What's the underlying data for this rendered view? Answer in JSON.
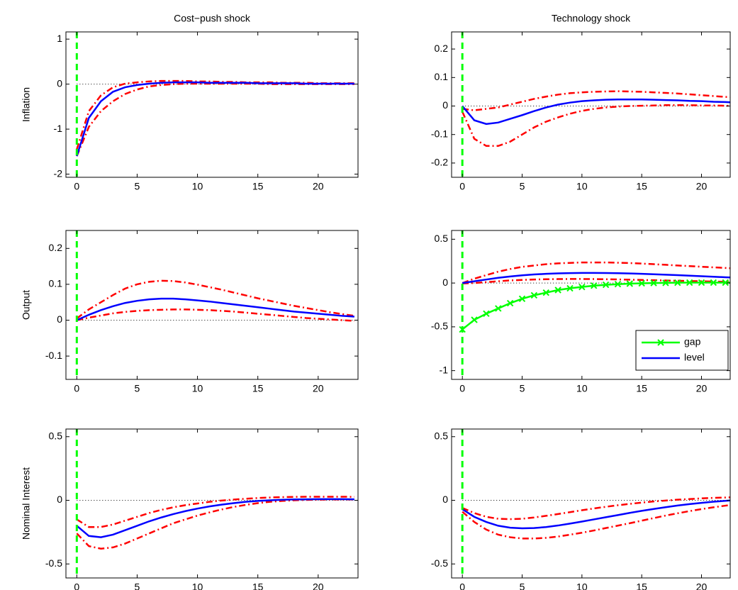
{
  "chart_data": [
    {
      "type": "line",
      "title": "Cost−push shock",
      "ylabel": "Inflation",
      "x": [
        0,
        1,
        2,
        3,
        4,
        5,
        6,
        7,
        8,
        9,
        10,
        11,
        12,
        13,
        14,
        15,
        16,
        17,
        18,
        19,
        20,
        21,
        22,
        23
      ],
      "xlim": [
        -0.9,
        23.3
      ],
      "xticks": [
        0,
        5,
        10,
        15,
        20
      ],
      "ylim": [
        -2.07,
        1.16
      ],
      "yticks": [
        -2,
        -1,
        0,
        1
      ],
      "series": [
        {
          "color": "#ff0000",
          "style": "dashdot",
          "values": [
            -1.45,
            -0.6,
            -0.25,
            -0.07,
            0.01,
            0.04,
            0.06,
            0.07,
            0.07,
            0.07,
            0.06,
            0.06,
            0.05,
            0.05,
            0.04,
            0.04,
            0.04,
            0.03,
            0.03,
            0.03,
            0.02,
            0.02,
            0.02,
            0.02
          ]
        },
        {
          "color": "#ff0000",
          "style": "dashdot",
          "values": [
            -1.6,
            -0.95,
            -0.6,
            -0.38,
            -0.22,
            -0.12,
            -0.05,
            -0.02,
            0,
            0.01,
            0.01,
            0.01,
            0.01,
            0.01,
            0.01,
            0.01,
            0,
            0,
            0,
            0,
            0,
            0,
            0,
            0
          ]
        },
        {
          "color": "#0000ff",
          "style": "solid",
          "values": [
            -1.6,
            -0.75,
            -0.38,
            -0.17,
            -0.07,
            -0.02,
            0.01,
            0.03,
            0.04,
            0.04,
            0.04,
            0.03,
            0.03,
            0.03,
            0.03,
            0.02,
            0.02,
            0.02,
            0.02,
            0.01,
            0.01,
            0.01,
            0.01,
            0.01
          ]
        }
      ]
    },
    {
      "type": "line",
      "title": "Technology shock",
      "x": [
        0,
        1,
        2,
        3,
        4,
        5,
        6,
        7,
        8,
        9,
        10,
        11,
        12,
        13,
        14,
        15,
        16,
        17,
        18,
        19,
        20,
        21,
        22,
        23
      ],
      "xlim": [
        -0.9,
        22.4
      ],
      "xticks": [
        0,
        5,
        10,
        15,
        20
      ],
      "ylim": [
        -0.25,
        0.26
      ],
      "yticks": [
        -0.2,
        -0.1,
        0,
        0.1,
        0.2
      ],
      "series": [
        {
          "color": "#ff0000",
          "style": "dashdot",
          "values": [
            -0.01,
            -0.015,
            -0.01,
            -0.005,
            0.005,
            0.015,
            0.025,
            0.033,
            0.04,
            0.045,
            0.048,
            0.05,
            0.051,
            0.052,
            0.051,
            0.05,
            0.048,
            0.046,
            0.044,
            0.041,
            0.038,
            0.035,
            0.032,
            0.03
          ]
        },
        {
          "color": "#ff0000",
          "style": "dashdot",
          "values": [
            -0.02,
            -0.115,
            -0.14,
            -0.14,
            -0.125,
            -0.1,
            -0.075,
            -0.055,
            -0.04,
            -0.027,
            -0.017,
            -0.01,
            -0.005,
            -0.002,
            0,
            0.001,
            0.002,
            0.003,
            0.003,
            0.003,
            0.002,
            0.002,
            0.001,
            0
          ]
        },
        {
          "color": "#0000ff",
          "style": "solid",
          "values": [
            0,
            -0.05,
            -0.063,
            -0.058,
            -0.045,
            -0.032,
            -0.018,
            -0.005,
            0.005,
            0.012,
            0.017,
            0.02,
            0.022,
            0.023,
            0.023,
            0.023,
            0.022,
            0.021,
            0.02,
            0.018,
            0.017,
            0.015,
            0.014,
            0.012
          ]
        }
      ]
    },
    {
      "type": "line",
      "ylabel": "Output",
      "x": [
        0,
        1,
        2,
        3,
        4,
        5,
        6,
        7,
        8,
        9,
        10,
        11,
        12,
        13,
        14,
        15,
        16,
        17,
        18,
        19,
        20,
        21,
        22,
        23
      ],
      "xlim": [
        -0.9,
        23.3
      ],
      "xticks": [
        0,
        5,
        10,
        15,
        20
      ],
      "ylim": [
        -0.165,
        0.25
      ],
      "yticks": [
        -0.1,
        0,
        0.1,
        0.2
      ],
      "series": [
        {
          "color": "#ff0000",
          "style": "dashdot",
          "values": [
            0.005,
            0.03,
            0.05,
            0.07,
            0.088,
            0.1,
            0.107,
            0.11,
            0.109,
            0.105,
            0.099,
            0.092,
            0.085,
            0.077,
            0.069,
            0.061,
            0.054,
            0.047,
            0.04,
            0.034,
            0.028,
            0.022,
            0.017,
            0.012
          ]
        },
        {
          "color": "#ff0000",
          "style": "dashdot",
          "values": [
            0,
            0.007,
            0.013,
            0.019,
            0.023,
            0.026,
            0.028,
            0.029,
            0.03,
            0.03,
            0.029,
            0.028,
            0.026,
            0.024,
            0.021,
            0.018,
            0.015,
            0.012,
            0.009,
            0.006,
            0.004,
            0.002,
            0,
            -0.002
          ]
        },
        {
          "color": "#0000ff",
          "style": "solid",
          "values": [
            0,
            0.015,
            0.028,
            0.039,
            0.048,
            0.054,
            0.058,
            0.06,
            0.06,
            0.058,
            0.055,
            0.052,
            0.048,
            0.044,
            0.04,
            0.036,
            0.032,
            0.028,
            0.024,
            0.021,
            0.018,
            0.015,
            0.012,
            0.01
          ]
        }
      ]
    },
    {
      "type": "line",
      "x": [
        0,
        1,
        2,
        3,
        4,
        5,
        6,
        7,
        8,
        9,
        10,
        11,
        12,
        13,
        14,
        15,
        16,
        17,
        18,
        19,
        20,
        21,
        22,
        23
      ],
      "xlim": [
        -0.9,
        22.4
      ],
      "xticks": [
        0,
        5,
        10,
        15,
        20
      ],
      "ylim": [
        -1.1,
        0.6
      ],
      "yticks": [
        -1,
        -0.5,
        0,
        0.5
      ],
      "legend": "lower right",
      "series": [
        {
          "color": "#ff0000",
          "style": "dashdot",
          "values": [
            0,
            0.05,
            0.09,
            0.13,
            0.16,
            0.185,
            0.2,
            0.215,
            0.225,
            0.23,
            0.235,
            0.235,
            0.235,
            0.232,
            0.228,
            0.222,
            0.215,
            0.208,
            0.2,
            0.193,
            0.186,
            0.179,
            0.172,
            0.165
          ]
        },
        {
          "color": "#ff0000",
          "style": "dashdot",
          "values": [
            -0.005,
            0,
            0.01,
            0.02,
            0.03,
            0.035,
            0.04,
            0.043,
            0.045,
            0.046,
            0.046,
            0.045,
            0.043,
            0.041,
            0.038,
            0.035,
            0.032,
            0.029,
            0.026,
            0.023,
            0.02,
            0.017,
            0.014,
            0.011
          ]
        },
        {
          "name": "gap",
          "color": "#00ff00",
          "style": "solid",
          "marker": "x",
          "values": [
            -0.53,
            -0.42,
            -0.35,
            -0.29,
            -0.23,
            -0.18,
            -0.14,
            -0.11,
            -0.08,
            -0.06,
            -0.045,
            -0.03,
            -0.02,
            -0.013,
            -0.007,
            -0.003,
            0,
            0.002,
            0.004,
            0.005,
            0.005,
            0.005,
            0.005,
            0.005
          ]
        },
        {
          "name": "level",
          "color": "#0000ff",
          "style": "solid",
          "values": [
            0,
            0.02,
            0.04,
            0.06,
            0.075,
            0.088,
            0.098,
            0.105,
            0.11,
            0.113,
            0.115,
            0.115,
            0.114,
            0.112,
            0.109,
            0.105,
            0.1,
            0.095,
            0.09,
            0.084,
            0.078,
            0.072,
            0.066,
            0.06
          ]
        }
      ]
    },
    {
      "type": "line",
      "ylabel": "Nominal Interest",
      "x": [
        0,
        1,
        2,
        3,
        4,
        5,
        6,
        7,
        8,
        9,
        10,
        11,
        12,
        13,
        14,
        15,
        16,
        17,
        18,
        19,
        20,
        21,
        22,
        23
      ],
      "xlim": [
        -0.9,
        23.3
      ],
      "xticks": [
        0,
        5,
        10,
        15,
        20
      ],
      "ylim": [
        -0.61,
        0.56
      ],
      "yticks": [
        -0.5,
        0,
        0.5
      ],
      "series": [
        {
          "color": "#ff0000",
          "style": "dashdot",
          "values": [
            -0.15,
            -0.21,
            -0.21,
            -0.19,
            -0.16,
            -0.13,
            -0.1,
            -0.075,
            -0.055,
            -0.038,
            -0.025,
            -0.012,
            -0.002,
            0.006,
            0.012,
            0.018,
            0.022,
            0.025,
            0.027,
            0.028,
            0.028,
            0.028,
            0.028,
            0.027
          ]
        },
        {
          "color": "#ff0000",
          "style": "dashdot",
          "values": [
            -0.26,
            -0.36,
            -0.38,
            -0.37,
            -0.34,
            -0.3,
            -0.26,
            -0.22,
            -0.18,
            -0.15,
            -0.12,
            -0.095,
            -0.072,
            -0.052,
            -0.036,
            -0.022,
            -0.012,
            -0.005,
            0,
            0.003,
            0.005,
            0.006,
            0.006,
            0.006
          ]
        },
        {
          "color": "#0000ff",
          "style": "solid",
          "values": [
            -0.2,
            -0.28,
            -0.29,
            -0.27,
            -0.235,
            -0.2,
            -0.165,
            -0.135,
            -0.108,
            -0.085,
            -0.065,
            -0.048,
            -0.034,
            -0.022,
            -0.012,
            -0.005,
            0,
            0.004,
            0.007,
            0.008,
            0.009,
            0.009,
            0.009,
            0.008
          ]
        }
      ]
    },
    {
      "type": "line",
      "x": [
        0,
        1,
        2,
        3,
        4,
        5,
        6,
        7,
        8,
        9,
        10,
        11,
        12,
        13,
        14,
        15,
        16,
        17,
        18,
        19,
        20,
        21,
        22,
        23
      ],
      "xlim": [
        -0.9,
        22.4
      ],
      "xticks": [
        0,
        5,
        10,
        15,
        20
      ],
      "ylim": [
        -0.61,
        0.56
      ],
      "yticks": [
        -0.5,
        0,
        0.5
      ],
      "series": [
        {
          "color": "#ff0000",
          "style": "dashdot",
          "values": [
            -0.06,
            -0.1,
            -0.13,
            -0.145,
            -0.148,
            -0.145,
            -0.135,
            -0.122,
            -0.108,
            -0.093,
            -0.078,
            -0.064,
            -0.051,
            -0.039,
            -0.028,
            -0.018,
            -0.009,
            -0.002,
            0.005,
            0.01,
            0.015,
            0.019,
            0.022,
            0.025
          ]
        },
        {
          "color": "#ff0000",
          "style": "dashdot",
          "values": [
            -0.09,
            -0.17,
            -0.23,
            -0.27,
            -0.29,
            -0.3,
            -0.3,
            -0.295,
            -0.285,
            -0.27,
            -0.255,
            -0.237,
            -0.218,
            -0.199,
            -0.18,
            -0.16,
            -0.14,
            -0.12,
            -0.102,
            -0.085,
            -0.069,
            -0.055,
            -0.042,
            -0.03
          ]
        },
        {
          "color": "#0000ff",
          "style": "solid",
          "values": [
            -0.07,
            -0.13,
            -0.17,
            -0.2,
            -0.215,
            -0.22,
            -0.218,
            -0.21,
            -0.198,
            -0.183,
            -0.167,
            -0.15,
            -0.133,
            -0.116,
            -0.099,
            -0.083,
            -0.068,
            -0.054,
            -0.041,
            -0.03,
            -0.02,
            -0.011,
            -0.004,
            0.002
          ]
        }
      ]
    }
  ]
}
